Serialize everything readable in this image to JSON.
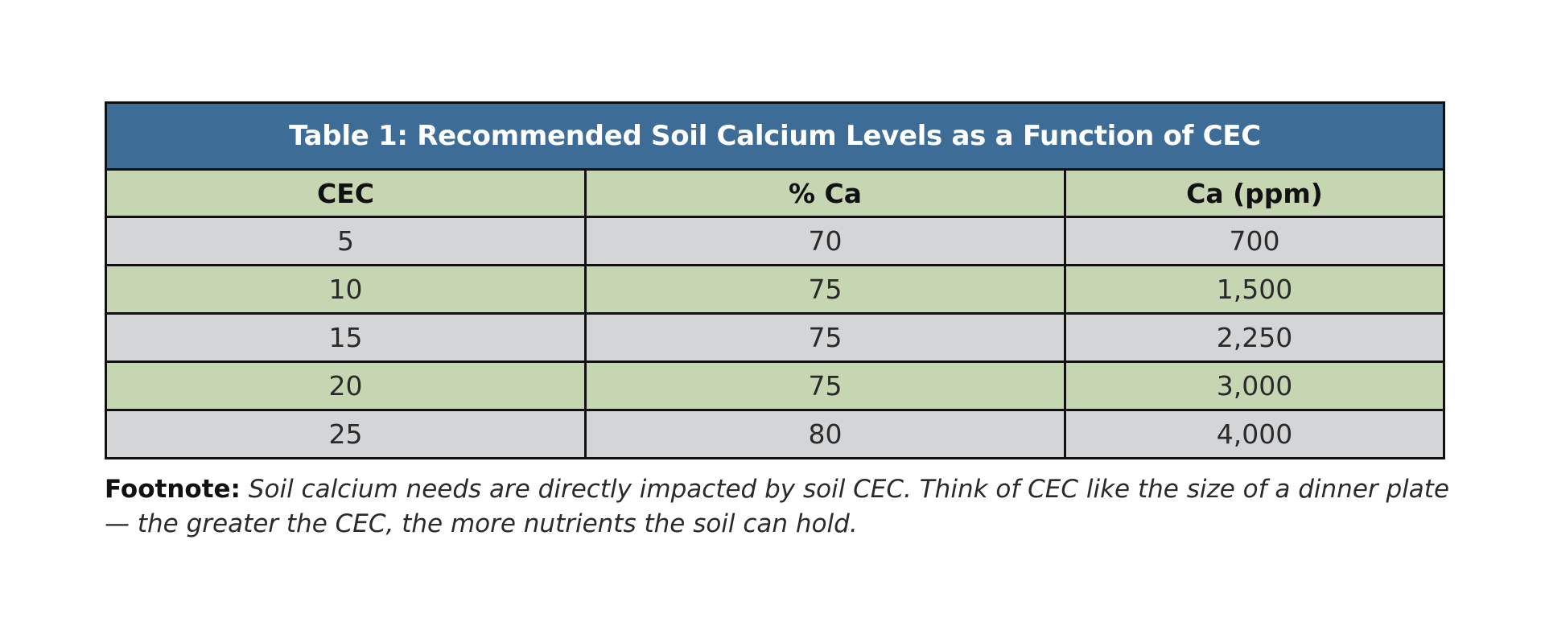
{
  "table": {
    "title": "Table 1: Recommended Soil Calcium Levels as a Function of CEC",
    "columns": [
      "CEC",
      "% Ca",
      "Ca (ppm)"
    ],
    "rows": [
      [
        "5",
        "70",
        "700"
      ],
      [
        "10",
        "75",
        "1,500"
      ],
      [
        "15",
        "75",
        "2,250"
      ],
      [
        "20",
        "75",
        "3,000"
      ],
      [
        "25",
        "80",
        "4,000"
      ]
    ],
    "colors": {
      "title_bg": "#3d6d97",
      "header_bg": "#c7d6b2",
      "row_gray": "#d4d5d7",
      "row_green": "#c7d6b2"
    }
  },
  "footnote": {
    "label": "Footnote:",
    "text": " Soil calcium needs are directly impacted by soil CEC. Think of CEC like the size of a dinner plate — the greater the CEC, the more nutrients the soil can hold."
  }
}
